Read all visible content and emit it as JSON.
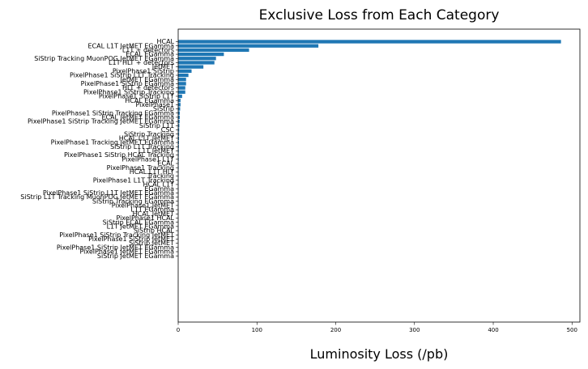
{
  "chart_data": {
    "type": "bar",
    "orientation": "horizontal",
    "title": "Exclusive Loss from Each Category",
    "xlabel": "Luminosity Loss (/pb)",
    "ylabel": "",
    "xlim": [
      0,
      510
    ],
    "xticks": [
      0,
      100,
      200,
      300,
      400,
      500
    ],
    "grid": false,
    "bar_color": "#1f77b4",
    "categories": [
      "HCAL",
      "ECAL L1T JetMET EGamma",
      "L1T + detectors",
      "ECAL EGamma",
      "SiStrip Tracking MuonPOG JetMET EGamma",
      "L1T HLT + detectors",
      "JetMET",
      "PixelPhase1 SiStrip",
      "PixelPhase1 SiStrip L1T Tracking",
      "JetMET EGamma",
      "PixelPhase1 SiStrip EGamma",
      "HLT + detectors",
      "PixelPhase1 SiStrip Tracking",
      "PixelPhase1 SiStrip L1T",
      "HCAL EGamma",
      "PixelPhase1",
      "SiStrip",
      "PixelPhase1 SiStrip Tracking EGamma",
      "ECAL JetMET EGamma",
      "PixelPhase1 SiStrip Tracking JetMET EGamma",
      "SiStrip L1T",
      "CSC",
      "SiStrip Tracking",
      "HCAL L1T JetMET",
      "PixelPhase1 Tracking JetMET EGamma",
      "SiStrip L1T Tracking",
      "L1T JetMET",
      "PixelPhase1 SiStrip HCAL Tracking",
      "PixelPhase1 L1T",
      "ECAL",
      "PixelPhase1 Tracking",
      "HCAL L1T HLT",
      "Tracking",
      "PixelPhase1 L1T Tracking",
      "HCAL L1T",
      "EGamma",
      "PixelPhase1 SiStrip L1T JetMET EGamma",
      "SiStrip L1T Tracking MuonPOG JetMET EGamma",
      "SiStrip Tracking EGamma",
      "PixelPhase1 JetMET",
      "L1T EGamma",
      "HCAL JetMET",
      "PixelPhase1 HCAL",
      "SiStrip ECAL EGamma",
      "L1T JetMET EGamma",
      "SiStrip HCAL",
      "PixelPhase1 SiStrip Tracking JetMET",
      "PixelPhase1 SiStrip JetMET",
      "SiStrip JetMET",
      "PixelPhase1 SiStrip JetMET EGamma",
      "PixelPhase1 JetMET EGamma",
      "SiStrip JetMET EGamma"
    ],
    "values": [
      486,
      178,
      90,
      58,
      48,
      46,
      32,
      17,
      13,
      10,
      10,
      9,
      9,
      5,
      3,
      3,
      2.5,
      2,
      2,
      1.8,
      1.5,
      1.3,
      1.2,
      1.1,
      1.0,
      0.9,
      0.8,
      0.7,
      0.7,
      0.6,
      0.6,
      0.5,
      0.5,
      0.5,
      0.4,
      0.4,
      0.4,
      0.3,
      0.3,
      0.3,
      0.3,
      0.2,
      0.2,
      0.2,
      0.2,
      0.2,
      0.1,
      0.1,
      0.1,
      0.1,
      0.1,
      0.1
    ]
  }
}
